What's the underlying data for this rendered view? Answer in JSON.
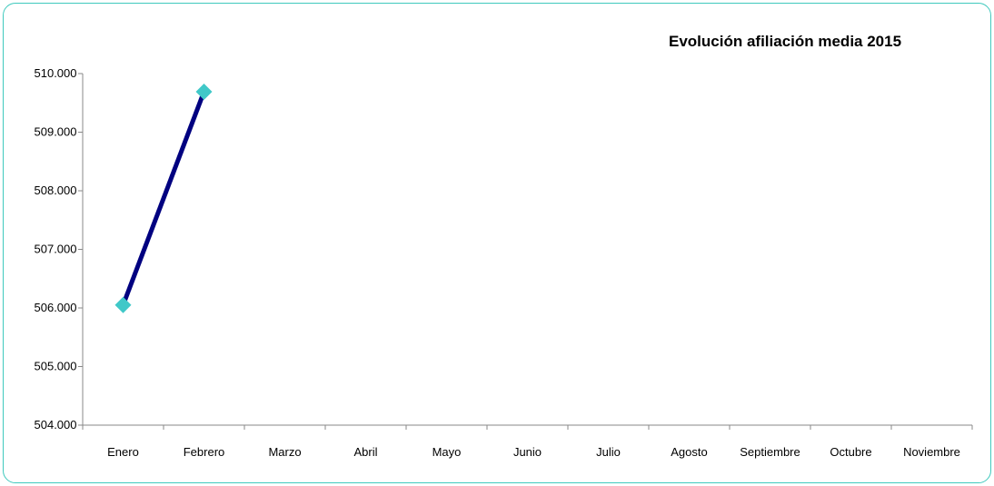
{
  "chart_data": {
    "type": "line",
    "title": "Evolución afiliación media 2015",
    "categories": [
      "Enero",
      "Febrero",
      "Marzo",
      "Abril",
      "Mayo",
      "Junio",
      "Julio",
      "Agosto",
      "Septiembre",
      "Octubre",
      "Noviembre"
    ],
    "series": [
      {
        "values": [
          506050,
          509690,
          null,
          null,
          null,
          null,
          null,
          null,
          null,
          null,
          null
        ]
      }
    ],
    "ylim": [
      504000,
      510000
    ],
    "yticks": [
      504000,
      505000,
      506000,
      507000,
      508000,
      509000,
      510000
    ],
    "ytick_labels": [
      "504.000",
      "505.000",
      "506.000",
      "507.000",
      "508.000",
      "509.000",
      "510.000"
    ],
    "grid": false,
    "legend": "none",
    "colors": {
      "line": "#000080",
      "marker": "#40c8c8",
      "border": "#3fc9bd",
      "axis": "#888888"
    }
  }
}
